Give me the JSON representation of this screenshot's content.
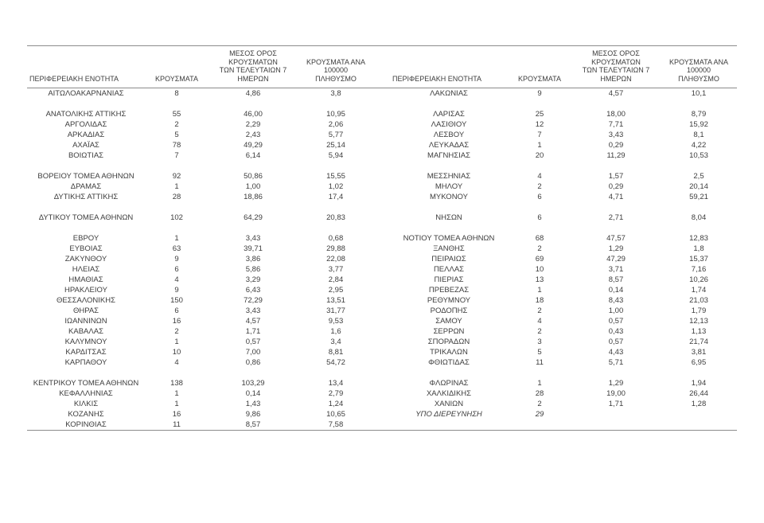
{
  "accent_colors": {
    "text": "#3d3d3d",
    "rule": "#8c8c8c",
    "background": "#ffffff"
  },
  "headers": {
    "region": "ΠΕΡΙΦΕΡΕΙΑΚΗ ΕΝΟΤΗΤΑ",
    "cases": "ΚΡΟΥΣΜΑΤΑ",
    "avg7_lines": [
      "ΜΕΣΟΣ ΟΡΟΣ ΚΡΟΥΣΜΑΤΩΝ",
      "ΤΩΝ ΤΕΛΕΥΤΑΙΩΝ 7",
      "ΗΜΕΡΩΝ"
    ],
    "per100k_lines": [
      "ΚΡΟΥΣΜΑΤΑ ΑΝΑ 100000",
      "ΠΛΗΘΥΣΜΟ"
    ]
  },
  "left_rows": [
    {
      "region": "ΑΙΤΩΛΟΑΚΑΡΝΑΝΙΑΣ",
      "cases": "8",
      "avg7": "4,86",
      "per100k": "3,8"
    },
    null,
    {
      "region": "ΑΝΑΤΟΛΙΚΗΣ ΑΤΤΙΚΗΣ",
      "cases": "55",
      "avg7": "46,00",
      "per100k": "10,95"
    },
    {
      "region": "ΑΡΓΟΛΙΔΑΣ",
      "cases": "2",
      "avg7": "2,29",
      "per100k": "2,06"
    },
    {
      "region": "ΑΡΚΑΔΙΑΣ",
      "cases": "5",
      "avg7": "2,43",
      "per100k": "5,77"
    },
    {
      "region": "ΑΧΑΪΑΣ",
      "cases": "78",
      "avg7": "49,29",
      "per100k": "25,14"
    },
    {
      "region": "ΒΟΙΩΤΙΑΣ",
      "cases": "7",
      "avg7": "6,14",
      "per100k": "5,94"
    },
    null,
    {
      "region": "ΒΟΡΕΙΟΥ ΤΟΜΕΑ ΑΘΗΝΩΝ",
      "cases": "92",
      "avg7": "50,86",
      "per100k": "15,55"
    },
    {
      "region": "ΔΡΑΜΑΣ",
      "cases": "1",
      "avg7": "1,00",
      "per100k": "1,02"
    },
    {
      "region": "ΔΥΤΙΚΗΣ ΑΤΤΙΚΗΣ",
      "cases": "28",
      "avg7": "18,86",
      "per100k": "17,4"
    },
    null,
    {
      "region": "ΔΥΤΙΚΟΥ ΤΟΜΕΑ ΑΘΗΝΩΝ",
      "cases": "102",
      "avg7": "64,29",
      "per100k": "20,83"
    },
    null,
    {
      "region": "ΕΒΡΟΥ",
      "cases": "1",
      "avg7": "3,43",
      "per100k": "0,68"
    },
    {
      "region": "ΕΥΒΟΙΑΣ",
      "cases": "63",
      "avg7": "39,71",
      "per100k": "29,88"
    },
    {
      "region": "ΖΑΚΥΝΘΟΥ",
      "cases": "9",
      "avg7": "3,86",
      "per100k": "22,08"
    },
    {
      "region": "ΗΛΕΙΑΣ",
      "cases": "6",
      "avg7": "5,86",
      "per100k": "3,77"
    },
    {
      "region": "ΗΜΑΘΙΑΣ",
      "cases": "4",
      "avg7": "3,29",
      "per100k": "2,84"
    },
    {
      "region": "ΗΡΑΚΛΕΙΟΥ",
      "cases": "9",
      "avg7": "6,43",
      "per100k": "2,95"
    },
    {
      "region": "ΘΕΣΣΑΛΟΝΙΚΗΣ",
      "cases": "150",
      "avg7": "72,29",
      "per100k": "13,51"
    },
    {
      "region": "ΘΗΡΑΣ",
      "cases": "6",
      "avg7": "3,43",
      "per100k": "31,77"
    },
    {
      "region": "ΙΩΑΝΝΙΝΩΝ",
      "cases": "16",
      "avg7": "4,57",
      "per100k": "9,53"
    },
    {
      "region": "ΚΑΒΑΛΑΣ",
      "cases": "2",
      "avg7": "1,71",
      "per100k": "1,6"
    },
    {
      "region": "ΚΑΛΥΜΝΟΥ",
      "cases": "1",
      "avg7": "0,57",
      "per100k": "3,4"
    },
    {
      "region": "ΚΑΡΔΙΤΣΑΣ",
      "cases": "10",
      "avg7": "7,00",
      "per100k": "8,81"
    },
    {
      "region": "ΚΑΡΠΑΘΟΥ",
      "cases": "4",
      "avg7": "0,86",
      "per100k": "54,72"
    },
    null,
    {
      "region": "ΚΕΝΤΡΙΚΟΥ ΤΟΜΕΑ ΑΘΗΝΩΝ",
      "cases": "138",
      "avg7": "103,29",
      "per100k": "13,4"
    },
    {
      "region": "ΚΕΦΑΛΛΗΝΙΑΣ",
      "cases": "1",
      "avg7": "0,14",
      "per100k": "2,79"
    },
    {
      "region": "ΚΙΛΚΙΣ",
      "cases": "1",
      "avg7": "1,43",
      "per100k": "1,24"
    },
    {
      "region": "ΚΟΖΑΝΗΣ",
      "cases": "16",
      "avg7": "9,86",
      "per100k": "10,65"
    },
    {
      "region": "ΚΟΡΙΝΘΙΑΣ",
      "cases": "11",
      "avg7": "8,57",
      "per100k": "7,58"
    }
  ],
  "right_rows": [
    {
      "region": "ΛΑΚΩΝΙΑΣ",
      "cases": "9",
      "avg7": "4,57",
      "per100k": "10,1"
    },
    null,
    {
      "region": "ΛΑΡΙΣΑΣ",
      "cases": "25",
      "avg7": "18,00",
      "per100k": "8,79"
    },
    {
      "region": "ΛΑΣΙΘΙΟΥ",
      "cases": "12",
      "avg7": "7,71",
      "per100k": "15,92"
    },
    {
      "region": "ΛΕΣΒΟΥ",
      "cases": "7",
      "avg7": "3,43",
      "per100k": "8,1"
    },
    {
      "region": "ΛΕΥΚΑΔΑΣ",
      "cases": "1",
      "avg7": "0,29",
      "per100k": "4,22"
    },
    {
      "region": "ΜΑΓΝΗΣΙΑΣ",
      "cases": "20",
      "avg7": "11,29",
      "per100k": "10,53"
    },
    null,
    {
      "region": "ΜΕΣΣΗΝΙΑΣ",
      "cases": "4",
      "avg7": "1,57",
      "per100k": "2,5"
    },
    {
      "region": "ΜΗΛΟΥ",
      "cases": "2",
      "avg7": "0,29",
      "per100k": "20,14"
    },
    {
      "region": "ΜΥΚΟΝΟΥ",
      "cases": "6",
      "avg7": "4,71",
      "per100k": "59,21"
    },
    null,
    {
      "region": "ΝΗΣΩΝ",
      "cases": "6",
      "avg7": "2,71",
      "per100k": "8,04"
    },
    null,
    {
      "region": "ΝΟΤΙΟΥ ΤΟΜΕΑ ΑΘΗΝΩΝ",
      "cases": "68",
      "avg7": "47,57",
      "per100k": "12,83"
    },
    {
      "region": "ΞΑΝΘΗΣ",
      "cases": "2",
      "avg7": "1,29",
      "per100k": "1,8"
    },
    {
      "region": "ΠΕΙΡΑΙΩΣ",
      "cases": "69",
      "avg7": "47,29",
      "per100k": "15,37"
    },
    {
      "region": "ΠΕΛΛΑΣ",
      "cases": "10",
      "avg7": "3,71",
      "per100k": "7,16"
    },
    {
      "region": "ΠΙΕΡΙΑΣ",
      "cases": "13",
      "avg7": "8,57",
      "per100k": "10,26"
    },
    {
      "region": "ΠΡΕΒΕΖΑΣ",
      "cases": "1",
      "avg7": "0,14",
      "per100k": "1,74"
    },
    {
      "region": "ΡΕΘΥΜΝΟΥ",
      "cases": "18",
      "avg7": "8,43",
      "per100k": "21,03"
    },
    {
      "region": "ΡΟΔΟΠΗΣ",
      "cases": "2",
      "avg7": "1,00",
      "per100k": "1,79"
    },
    {
      "region": "ΣΑΜΟΥ",
      "cases": "4",
      "avg7": "0,57",
      "per100k": "12,13"
    },
    {
      "region": "ΣΕΡΡΩΝ",
      "cases": "2",
      "avg7": "0,43",
      "per100k": "1,13"
    },
    {
      "region": "ΣΠΟΡΑΔΩΝ",
      "cases": "3",
      "avg7": "0,57",
      "per100k": "21,74"
    },
    {
      "region": "ΤΡΙΚΑΛΩΝ",
      "cases": "5",
      "avg7": "4,43",
      "per100k": "3,81"
    },
    {
      "region": "ΦΘΙΩΤΙΔΑΣ",
      "cases": "11",
      "avg7": "5,71",
      "per100k": "6,95"
    },
    null,
    {
      "region": "ΦΛΩΡΙΝΑΣ",
      "cases": "1",
      "avg7": "1,29",
      "per100k": "1,94"
    },
    {
      "region": "ΧΑΛΚΙΔΙΚΗΣ",
      "cases": "28",
      "avg7": "19,00",
      "per100k": "26,44"
    },
    {
      "region": "ΧΑΝΙΩΝ",
      "cases": "2",
      "avg7": "1,71",
      "per100k": "1,28"
    },
    {
      "region": "ΥΠΟ ΔΙΕΡΕΥΝΗΣΗ",
      "cases": "29",
      "avg7": "",
      "per100k": "",
      "italic": true
    },
    null
  ]
}
